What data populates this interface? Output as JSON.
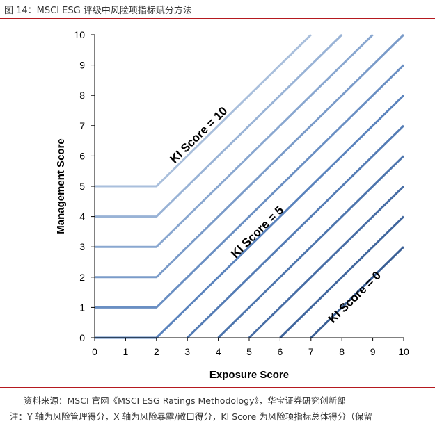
{
  "header": {
    "figure_title": "图 14：MSCI ESG 评级中风险项指标赋分方法"
  },
  "footer": {
    "source": "资料来源：MSCI 官网《MSCI ESG Ratings Methodology》，华宝证券研究创新部",
    "note": "注：Y 轴为风险管理得分，X 轴为风险暴露/敞口得分，KI Score 为风险项指标总体得分（保留"
  },
  "colors": {
    "rule": "#b5191f",
    "line_light": "#a9bfdc",
    "line_mid": "#5a83bd",
    "line_dark": "#3a5f95"
  },
  "chart_data": {
    "type": "line",
    "xlabel": "Exposure Score",
    "ylabel": "Management Score",
    "xlim": [
      0,
      10
    ],
    "ylim": [
      0,
      10
    ],
    "x_ticks": [
      "0",
      "1",
      "2",
      "3",
      "4",
      "5",
      "6",
      "7",
      "8",
      "9",
      "10"
    ],
    "y_ticks": [
      "0",
      "1",
      "2",
      "3",
      "4",
      "5",
      "6",
      "7",
      "8",
      "9",
      "10"
    ],
    "grid": false,
    "series": [
      {
        "x": [
          0,
          2,
          7
        ],
        "y": [
          5,
          5,
          10
        ]
      },
      {
        "x": [
          0,
          2,
          8
        ],
        "y": [
          4,
          4,
          10
        ]
      },
      {
        "x": [
          0,
          2,
          9
        ],
        "y": [
          3,
          3,
          10
        ]
      },
      {
        "x": [
          0,
          2,
          10
        ],
        "y": [
          2,
          2,
          10
        ]
      },
      {
        "x": [
          0,
          2,
          10
        ],
        "y": [
          1,
          1,
          9
        ]
      },
      {
        "x": [
          0,
          2,
          10
        ],
        "y": [
          0,
          0,
          8
        ]
      },
      {
        "x": [
          3,
          10
        ],
        "y": [
          0,
          7
        ]
      },
      {
        "x": [
          4,
          10
        ],
        "y": [
          0,
          6
        ]
      },
      {
        "x": [
          5,
          10
        ],
        "y": [
          0,
          5
        ]
      },
      {
        "x": [
          6,
          10
        ],
        "y": [
          0,
          4
        ]
      },
      {
        "x": [
          7,
          10
        ],
        "y": [
          0,
          3
        ]
      }
    ],
    "annotations": [
      {
        "text": "KI Score = 10",
        "x": 3.45,
        "y": 6.6
      },
      {
        "text": "KI Score = 5",
        "x": 5.35,
        "y": 3.4
      },
      {
        "text": "KI Score = 0",
        "x": 8.5,
        "y": 1.25
      }
    ]
  }
}
